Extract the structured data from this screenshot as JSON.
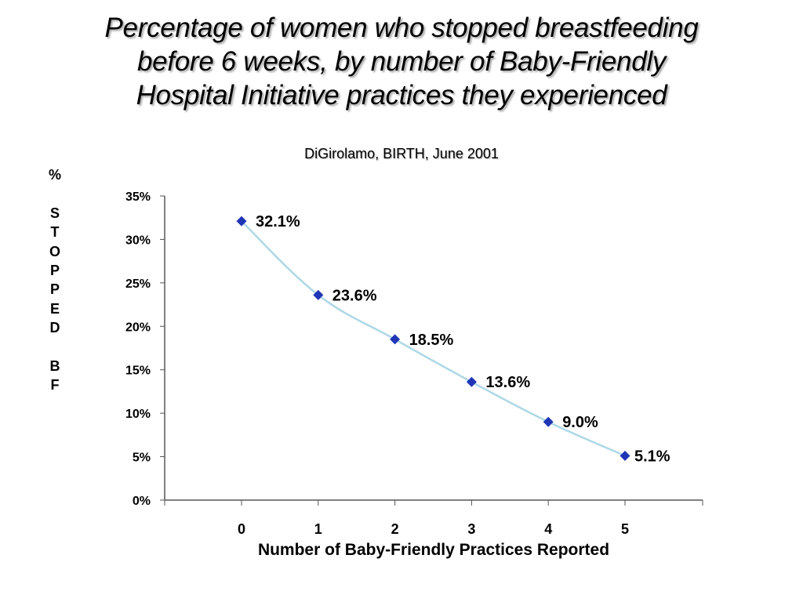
{
  "slide": {
    "title_lines": [
      "Percentage of women who stopped breastfeeding",
      "before 6 weeks, by number of Baby-Friendly",
      "Hospital Initiative practices they experienced"
    ],
    "subtitle": "DiGirolamo, BIRTH, June 2001",
    "ylabel_chars": [
      "%",
      "",
      "S",
      "T",
      "O",
      "P",
      "P",
      "E",
      "D",
      "",
      "B",
      "F"
    ]
  },
  "chart_data": {
    "type": "line",
    "title": "Percentage of women who stopped breastfeeding before 6 weeks, by number of Baby-Friendly Hospital Initiative practices they experienced",
    "subtitle": "DiGirolamo, BIRTH, June 2001",
    "xlabel": "Number of Baby-Friendly Practices Reported",
    "ylabel": "% STOPPED BF",
    "x": [
      0,
      1,
      2,
      3,
      4,
      5
    ],
    "series": [
      {
        "name": "Stopped breastfeeding before 6 weeks",
        "values": [
          32.1,
          23.6,
          18.5,
          13.6,
          9.0,
          5.1
        ],
        "labels": [
          "32.1%",
          "23.6%",
          "18.5%",
          "13.6%",
          "9.0%",
          "5.1%"
        ],
        "line_color": "#add8e6",
        "marker": "diamond",
        "marker_color": "#1f35b5"
      }
    ],
    "yticks": [
      0,
      5,
      10,
      15,
      20,
      25,
      30,
      35
    ],
    "ytick_labels": [
      "0%",
      "5%",
      "10%",
      "15%",
      "20%",
      "25%",
      "30%",
      "35%"
    ],
    "xtick_labels": [
      "0",
      "1",
      "2",
      "3",
      "4",
      "5"
    ],
    "ylim": [
      0,
      35
    ],
    "xlim": [
      -1,
      6
    ],
    "grid": false,
    "legend": "none"
  }
}
